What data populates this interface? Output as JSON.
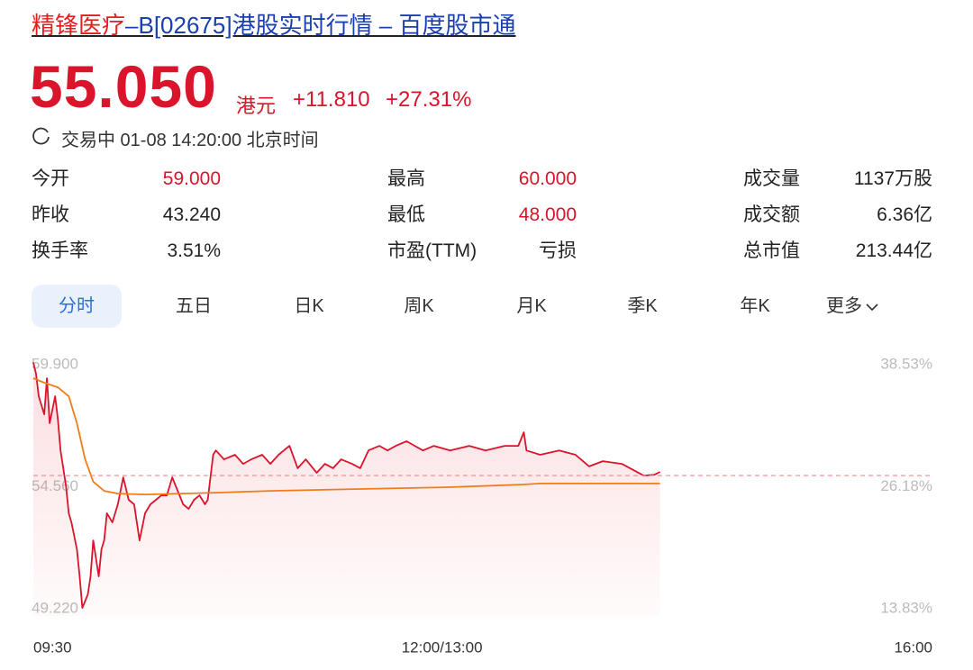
{
  "header": {
    "title_name": "精锋医疗",
    "title_rest": "–B[02675]港股实时行情 – 百度股市通"
  },
  "quote": {
    "price": "55.050",
    "currency": "港元",
    "change": "+11.810",
    "change_pct": "+27.31%",
    "status": "交易中 01-08 14:20:00 北京时间"
  },
  "stats": [
    [
      {
        "label": "今开",
        "value": "59.000",
        "up": true
      },
      {
        "label": "最高",
        "value": "60.000",
        "up": true
      },
      {
        "label": "成交量",
        "value": "1137万股"
      }
    ],
    [
      {
        "label": "昨收",
        "value": "43.240"
      },
      {
        "label": "最低",
        "value": "48.000",
        "up": true
      },
      {
        "label": "成交额",
        "value": "6.36亿"
      }
    ],
    [
      {
        "label": "换手率",
        "value": "3.51%"
      },
      {
        "label": "市盈(TTM)",
        "value": "亏损"
      },
      {
        "label": "总市值",
        "value": "213.44亿"
      }
    ]
  ],
  "tabs": [
    "分时",
    "五日",
    "日K",
    "周K",
    "月K",
    "季K",
    "年K",
    "更多"
  ],
  "chart_data": {
    "type": "line",
    "xlim": [
      0,
      330
    ],
    "xticks": [
      {
        "value": 0,
        "label": "09:30"
      },
      {
        "value": 150,
        "label": "12:00/13:00"
      },
      {
        "value": 330,
        "label": "16:00"
      }
    ],
    "ylim": [
      49.22,
      59.9
    ],
    "yticks": [
      {
        "value": 59.9,
        "label": "59.900"
      },
      {
        "value": 54.56,
        "label": "54.560"
      },
      {
        "value": 49.22,
        "label": "49.220"
      }
    ],
    "y2lim": [
      13.83,
      38.53
    ],
    "y2ticks": [
      {
        "value": 38.53,
        "label": "38.53%"
      },
      {
        "value": 26.18,
        "label": "26.18%"
      },
      {
        "value": 13.83,
        "label": "13.83%"
      }
    ],
    "current": 55.05,
    "grid": false,
    "series": [
      {
        "color": "#d9142b",
        "area": true,
        "x": [
          0,
          1,
          2,
          4,
          5,
          6,
          8,
          9,
          10,
          12,
          13,
          14,
          16,
          17,
          18,
          20,
          21,
          22,
          24,
          25,
          26,
          27,
          29,
          31,
          33,
          35,
          37,
          39,
          41,
          43,
          45,
          47,
          49,
          51,
          53,
          55,
          57,
          59,
          61,
          63,
          64,
          66,
          67,
          70,
          74,
          77,
          80,
          84,
          87,
          90,
          94,
          97,
          100,
          104,
          107,
          110,
          113,
          117,
          120,
          123,
          127,
          130,
          133,
          137,
          140,
          143,
          147,
          153,
          160,
          166,
          173,
          178,
          180,
          181,
          186,
          193,
          199,
          204,
          209,
          216,
          219,
          224,
          228,
          230
        ],
        "values": [
          60.0,
          59.5,
          58.52,
          57.73,
          59.31,
          57.34,
          58.52,
          57.53,
          56.15,
          54.58,
          53.4,
          53.0,
          51.82,
          50.64,
          49.26,
          49.85,
          50.64,
          52.21,
          50.64,
          51.82,
          52.21,
          53.4,
          53.0,
          53.79,
          54.97,
          53.99,
          53.79,
          52.21,
          53.4,
          53.79,
          53.99,
          54.18,
          54.18,
          54.97,
          54.38,
          53.79,
          53.59,
          53.99,
          54.18,
          53.79,
          53.99,
          55.96,
          56.15,
          55.76,
          55.96,
          55.56,
          55.76,
          55.96,
          55.56,
          55.96,
          56.35,
          55.37,
          55.76,
          55.17,
          55.56,
          55.37,
          55.76,
          55.56,
          55.37,
          56.15,
          56.35,
          56.15,
          56.35,
          56.55,
          56.35,
          56.15,
          56.35,
          56.15,
          56.35,
          56.15,
          56.35,
          56.35,
          56.94,
          56.15,
          55.96,
          56.15,
          55.96,
          55.45,
          55.68,
          55.56,
          55.37,
          55.05,
          55.09,
          55.21
        ]
      },
      {
        "color": "#f07d1a",
        "x": [
          0,
          4,
          9,
          13,
          16,
          19,
          22,
          26,
          31,
          41,
          54,
          67,
          87,
          120,
          153,
          180,
          186,
          230
        ],
        "values": [
          59.31,
          59.11,
          58.91,
          58.52,
          57.34,
          55.76,
          54.78,
          54.38,
          54.26,
          54.22,
          54.26,
          54.3,
          54.38,
          54.46,
          54.54,
          54.66,
          54.7,
          54.7
        ]
      }
    ]
  }
}
